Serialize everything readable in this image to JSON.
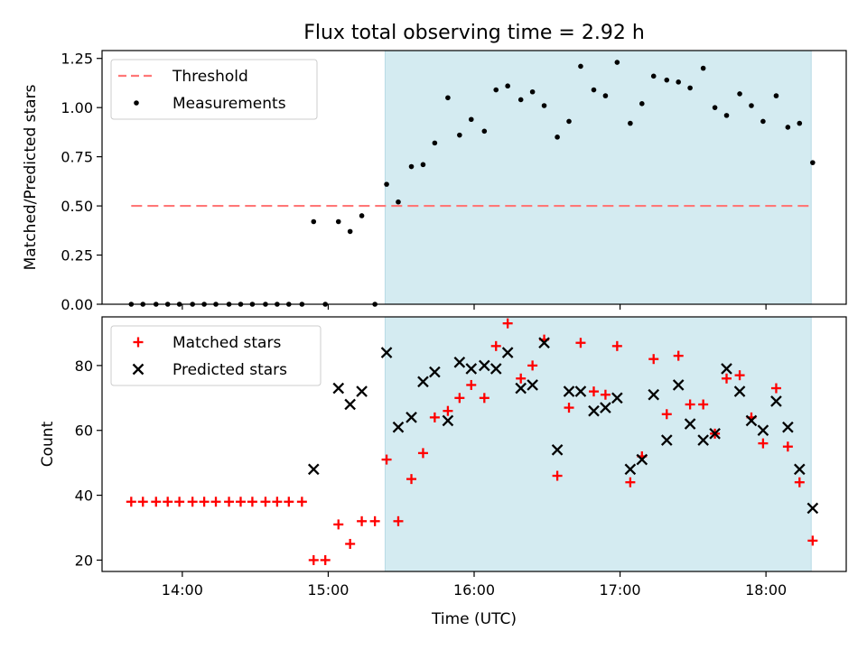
{
  "chart_data": {
    "title": "Flux total observing time = 2.92 h",
    "xlabel": "Time (UTC)",
    "x_ticks": [
      "14:00",
      "15:00",
      "16:00",
      "17:00",
      "18:00"
    ],
    "x_tick_hours": [
      14,
      15,
      16,
      17,
      18
    ],
    "xlim_hours": [
      13.45,
      18.55
    ],
    "shaded_region_hours": [
      15.39,
      18.31
    ],
    "shade_color": "#d4ebf1",
    "panels": [
      {
        "type": "scatter",
        "ylabel": "Matched/Predicted stars",
        "ylim": [
          0,
          1.29
        ],
        "y_ticks": [
          "0.00",
          "0.25",
          "0.50",
          "0.75",
          "1.00",
          "1.25"
        ],
        "y_tick_values": [
          0,
          0.25,
          0.5,
          0.75,
          1.0,
          1.25
        ],
        "legend_position": "top-left",
        "threshold": {
          "name": "Threshold",
          "value": 0.5,
          "x_range_hours": [
            13.65,
            18.31
          ],
          "color": "#ff7777"
        },
        "series": [
          {
            "name": "Measurements",
            "marker": "dot",
            "color": "#000000",
            "x_hours": [
              13.65,
              13.73,
              13.82,
              13.9,
              13.98,
              14.07,
              14.15,
              14.23,
              14.32,
              14.4,
              14.48,
              14.57,
              14.65,
              14.73,
              14.82,
              14.9,
              14.98,
              15.07,
              15.15,
              15.23,
              15.32,
              15.4,
              15.48,
              15.57,
              15.65,
              15.73,
              15.82,
              15.9,
              15.98,
              16.07,
              16.15,
              16.23,
              16.32,
              16.4,
              16.48,
              16.57,
              16.65,
              16.73,
              16.82,
              16.9,
              16.98,
              17.07,
              17.15,
              17.23,
              17.32,
              17.4,
              17.48,
              17.57,
              17.65,
              17.73,
              17.82,
              17.9,
              17.98,
              18.07,
              18.15,
              18.23,
              18.32
            ],
            "values": [
              0,
              0,
              0,
              0,
              0,
              0,
              0,
              0,
              0,
              0,
              0,
              0,
              0,
              0,
              0,
              0.42,
              0,
              0.42,
              0.37,
              0.45,
              0,
              0.61,
              0.52,
              0.7,
              0.71,
              0.82,
              1.05,
              0.86,
              0.94,
              0.88,
              1.09,
              1.11,
              1.04,
              1.08,
              1.01,
              0.85,
              0.93,
              1.21,
              1.09,
              1.06,
              1.23,
              0.92,
              1.02,
              1.16,
              1.14,
              1.13,
              1.1,
              1.2,
              1.0,
              0.96,
              1.07,
              1.01,
              0.93,
              1.06,
              0.9,
              0.92,
              0.72
            ]
          }
        ]
      },
      {
        "type": "scatter",
        "ylabel": "Count",
        "ylim": [
          16.5,
          95
        ],
        "y_ticks": [
          "20",
          "40",
          "60",
          "80"
        ],
        "y_tick_values": [
          20,
          40,
          60,
          80
        ],
        "legend_position": "top-left",
        "series": [
          {
            "name": "Matched stars",
            "marker": "plus",
            "color": "#ff0000",
            "x_hours": [
              13.65,
              13.73,
              13.82,
              13.9,
              13.98,
              14.07,
              14.15,
              14.23,
              14.32,
              14.4,
              14.48,
              14.57,
              14.65,
              14.73,
              14.82,
              14.9,
              14.98,
              15.07,
              15.15,
              15.23,
              15.32,
              15.4,
              15.48,
              15.57,
              15.65,
              15.73,
              15.82,
              15.9,
              15.98,
              16.07,
              16.15,
              16.23,
              16.32,
              16.4,
              16.48,
              16.57,
              16.65,
              16.73,
              16.82,
              16.9,
              16.98,
              17.07,
              17.15,
              17.23,
              17.32,
              17.4,
              17.48,
              17.57,
              17.65,
              17.73,
              17.82,
              17.9,
              17.98,
              18.07,
              18.15,
              18.23,
              18.32
            ],
            "values": [
              38,
              38,
              38,
              38,
              38,
              38,
              38,
              38,
              38,
              38,
              38,
              38,
              38,
              38,
              38,
              20,
              20,
              31,
              25,
              32,
              32,
              51,
              32,
              45,
              53,
              64,
              66,
              70,
              74,
              70,
              86,
              93,
              76,
              80,
              88,
              46,
              67,
              87,
              72,
              71,
              86,
              44,
              52,
              82,
              65,
              83,
              68,
              68,
              59,
              76,
              77,
              64,
              56,
              73,
              55,
              44,
              26
            ]
          },
          {
            "name": "Predicted stars",
            "marker": "x",
            "color": "#000000",
            "x_hours": [
              14.9,
              15.07,
              15.15,
              15.23,
              15.4,
              15.48,
              15.57,
              15.65,
              15.73,
              15.82,
              15.9,
              15.98,
              16.07,
              16.15,
              16.23,
              16.32,
              16.4,
              16.48,
              16.57,
              16.65,
              16.73,
              16.82,
              16.9,
              16.98,
              17.07,
              17.15,
              17.23,
              17.32,
              17.4,
              17.48,
              17.57,
              17.65,
              17.73,
              17.82,
              17.9,
              17.98,
              18.07,
              18.15,
              18.23,
              18.32
            ],
            "values": [
              48,
              73,
              68,
              72,
              84,
              61,
              64,
              75,
              78,
              63,
              81,
              79,
              80,
              79,
              84,
              73,
              74,
              87,
              54,
              72,
              72,
              66,
              67,
              70,
              48,
              51,
              71,
              57,
              74,
              62,
              57,
              59,
              79,
              72,
              63,
              60,
              69,
              61,
              48,
              36
            ]
          }
        ]
      }
    ]
  }
}
